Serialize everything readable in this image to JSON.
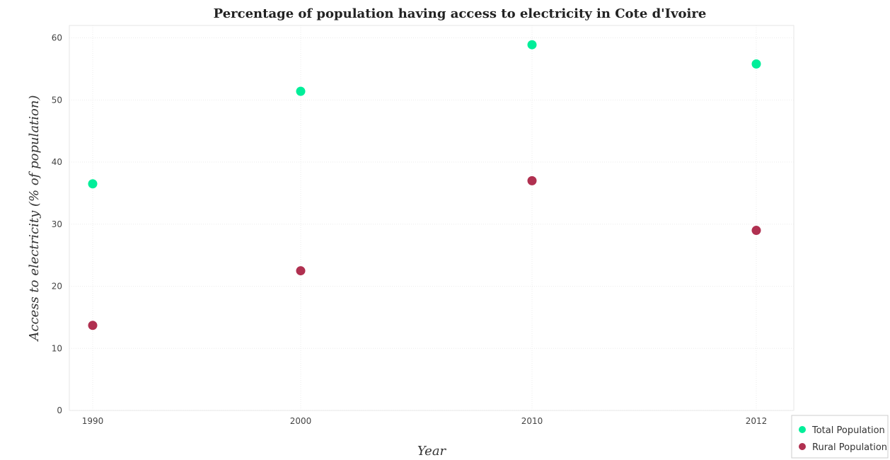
{
  "chart_data": {
    "type": "scatter",
    "title": "Percentage of population having access to electricity in Cote d'Ivoire",
    "xlabel": "Year",
    "ylabel": "Access to electricity (% of population)",
    "categories": [
      "1990",
      "2000",
      "2010",
      "2012"
    ],
    "yticks": [
      "0",
      "10",
      "20",
      "30",
      "40",
      "50",
      "60"
    ],
    "ylim": [
      0,
      62
    ],
    "grid": true,
    "legend_position": "bottom-right",
    "series": [
      {
        "name": "Total Population",
        "color": "#00ee99",
        "values": [
          36.5,
          51.4,
          58.9,
          55.8
        ]
      },
      {
        "name": "Rural Population",
        "color": "#b03050",
        "values": [
          13.7,
          22.5,
          37.0,
          29.0
        ]
      }
    ]
  }
}
